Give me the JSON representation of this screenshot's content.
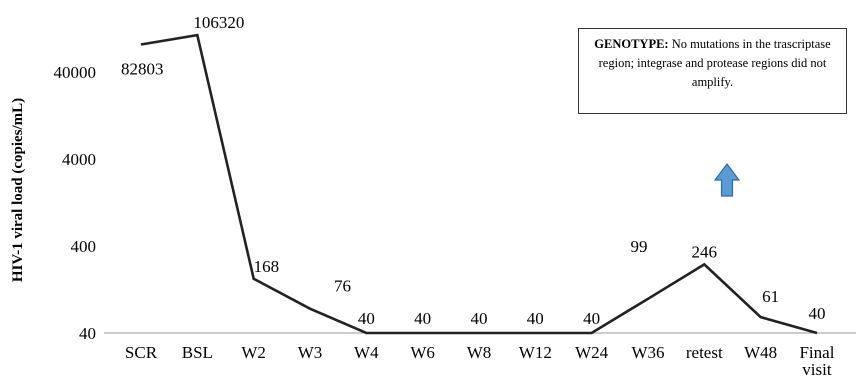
{
  "chart_data": {
    "type": "line",
    "ylabel": "HIV-1 viral load (copies/mL)",
    "yscale": "log",
    "ylim": [
      40,
      60000
    ],
    "yticks": [
      40,
      400,
      4000,
      40000
    ],
    "ytick_labels": [
      "40",
      "400",
      "4000",
      "40000"
    ],
    "categories": [
      "SCR",
      "BSL",
      "W2",
      "W3",
      "W4",
      "W6",
      "W8",
      "W12",
      "W24",
      "W36",
      "retest",
      "W48",
      "Final visit"
    ],
    "values": [
      82803,
      106320,
      168,
      76,
      40,
      40,
      40,
      40,
      40,
      99,
      246,
      61,
      40
    ],
    "data_labels": [
      "82803",
      "106320",
      "168",
      "76",
      "40",
      "40",
      "40",
      "40",
      "40",
      "99",
      "246",
      "61",
      "40"
    ],
    "series_color": "#222222",
    "grid": false,
    "legend": "none",
    "annotation": {
      "title": "GENOTYPE:",
      "text": "No mutations in the trascriptase region; integrase and protease regions did not amplify."
    },
    "arrow": {
      "direction": "up",
      "color": "#5b9bd5",
      "outline": "#2e6da4"
    }
  }
}
